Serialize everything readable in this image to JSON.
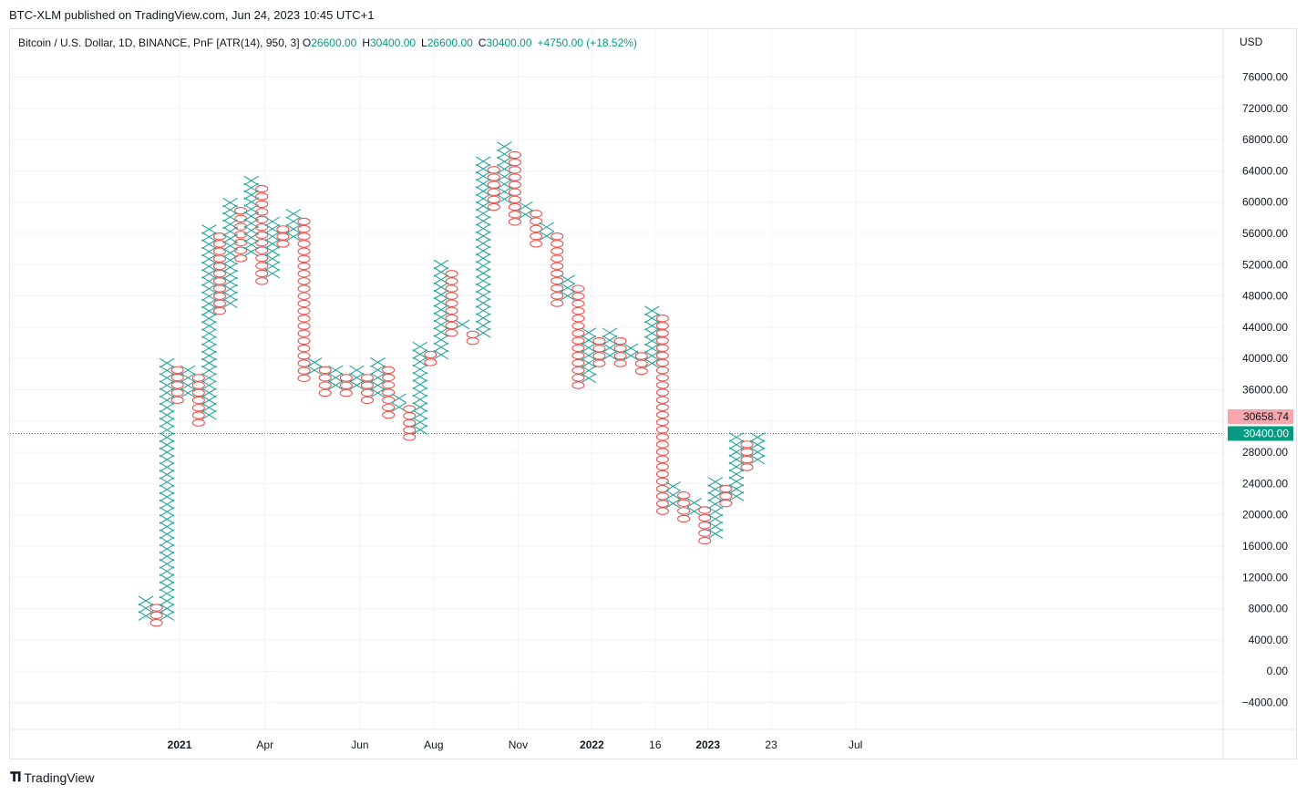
{
  "header": {
    "published": "BTC-XLM published on TradingView.com, Jun 24, 2023 10:45 UTC+1"
  },
  "legend": {
    "symbol": "Bitcoin / U.S. Dollar, 1D, BINANCE, PnF [ATR(14), 950, 3]",
    "o_label": "O",
    "o_value": "26600.00",
    "h_label": "H",
    "h_value": "30400.00",
    "l_label": "L",
    "l_value": "26600.00",
    "c_label": "C",
    "c_value": "30400.00",
    "change": "+4750.00 (+18.52%)"
  },
  "axis": {
    "currency": "USD"
  },
  "price_labels": {
    "close": "30400.00",
    "close_color": "#089981",
    "other": "30658.74",
    "other_color": "#f7a7ab"
  },
  "branding": {
    "name": "TradingView"
  },
  "colors": {
    "x_color": "#26a69a",
    "o_color": "#ef5350",
    "grid": "#f0f3fa"
  },
  "chart_data": {
    "type": "point-and-figure",
    "box_size": 950,
    "reversal": 3,
    "yticks": [
      76000,
      72000,
      68000,
      64000,
      60000,
      56000,
      52000,
      48000,
      44000,
      40000,
      36000,
      32000,
      28000,
      24000,
      20000,
      16000,
      12000,
      8000,
      4000,
      0,
      -4000
    ],
    "ytick_labels": [
      "76000.00",
      "72000.00",
      "68000.00",
      "64000.00",
      "60000.00",
      "56000.00",
      "52000.00",
      "48000.00",
      "44000.00",
      "40000.00",
      "36000.00",
      "",
      "28000.00",
      "24000.00",
      "20000.00",
      "16000.00",
      "12000.00",
      "8000.00",
      "4000.00",
      "0.00",
      "−4000.00"
    ],
    "ylim": [
      -8000,
      80000
    ],
    "xticks": [
      {
        "label": "2021",
        "bold": true,
        "col": 3.2
      },
      {
        "label": "Apr",
        "bold": false,
        "col": 11.3
      },
      {
        "label": "Jun",
        "bold": false,
        "col": 20.3
      },
      {
        "label": "Aug",
        "bold": false,
        "col": 27.3
      },
      {
        "label": "Nov",
        "bold": false,
        "col": 35.3
      },
      {
        "label": "2022",
        "bold": true,
        "col": 42.3
      },
      {
        "label": "16",
        "bold": false,
        "col": 48.3
      },
      {
        "label": "2023",
        "bold": true,
        "col": 53.3
      },
      {
        "label": "23",
        "bold": false,
        "col": 59.3
      },
      {
        "label": "Jul",
        "bold": false,
        "col": 67.3
      }
    ],
    "columns": [
      {
        "type": "X",
        "low": 6600,
        "high": 9500
      },
      {
        "type": "O",
        "low": 5700,
        "high": 8600
      },
      {
        "type": "X",
        "low": 6600,
        "high": 39900
      },
      {
        "type": "O",
        "low": 34200,
        "high": 39000
      },
      {
        "type": "X",
        "low": 35100,
        "high": 39000
      },
      {
        "type": "O",
        "low": 31300,
        "high": 38000
      },
      {
        "type": "X",
        "low": 32300,
        "high": 57000
      },
      {
        "type": "O",
        "low": 45600,
        "high": 56100
      },
      {
        "type": "X",
        "low": 46600,
        "high": 60400
      },
      {
        "type": "O",
        "low": 52300,
        "high": 59400
      },
      {
        "type": "X",
        "low": 53200,
        "high": 63200
      },
      {
        "type": "O",
        "low": 49400,
        "high": 62200
      },
      {
        "type": "X",
        "low": 50400,
        "high": 58000
      },
      {
        "type": "O",
        "low": 54200,
        "high": 57000
      },
      {
        "type": "X",
        "low": 55100,
        "high": 59000
      },
      {
        "type": "O",
        "low": 37000,
        "high": 58000
      },
      {
        "type": "X",
        "low": 38000,
        "high": 40000
      },
      {
        "type": "O",
        "low": 35100,
        "high": 39000
      },
      {
        "type": "X",
        "low": 36100,
        "high": 39000
      },
      {
        "type": "O",
        "low": 35100,
        "high": 38000
      },
      {
        "type": "X",
        "low": 36100,
        "high": 39000
      },
      {
        "type": "O",
        "low": 34200,
        "high": 38000
      },
      {
        "type": "X",
        "low": 35100,
        "high": 40000
      },
      {
        "type": "O",
        "low": 32300,
        "high": 39000
      },
      {
        "type": "X",
        "low": 33200,
        "high": 35500
      },
      {
        "type": "O",
        "low": 29500,
        "high": 34000
      },
      {
        "type": "X",
        "low": 30400,
        "high": 42000
      },
      {
        "type": "O",
        "low": 39000,
        "high": 41000
      },
      {
        "type": "X",
        "low": 40000,
        "high": 52500
      },
      {
        "type": "O",
        "low": 42800,
        "high": 51300
      },
      {
        "type": "X",
        "low": 43700,
        "high": 45000
      },
      {
        "type": "O",
        "low": 41800,
        "high": 43500
      },
      {
        "type": "X",
        "low": 42800,
        "high": 65700
      },
      {
        "type": "O",
        "low": 58900,
        "high": 64600
      },
      {
        "type": "X",
        "low": 59900,
        "high": 67600
      },
      {
        "type": "O",
        "low": 57000,
        "high": 66500
      },
      {
        "type": "X",
        "low": 57900,
        "high": 60000
      },
      {
        "type": "O",
        "low": 54200,
        "high": 59000
      },
      {
        "type": "X",
        "low": 55100,
        "high": 57400
      },
      {
        "type": "O",
        "low": 46600,
        "high": 56100
      },
      {
        "type": "X",
        "low": 47500,
        "high": 50600
      },
      {
        "type": "O",
        "low": 36100,
        "high": 49400
      },
      {
        "type": "X",
        "low": 37000,
        "high": 43800
      },
      {
        "type": "O",
        "low": 38900,
        "high": 42700
      },
      {
        "type": "X",
        "low": 39900,
        "high": 43800
      },
      {
        "type": "O",
        "low": 38900,
        "high": 42700
      },
      {
        "type": "X",
        "low": 39900,
        "high": 41800
      },
      {
        "type": "O",
        "low": 37900,
        "high": 40800
      },
      {
        "type": "X",
        "low": 38900,
        "high": 46600
      },
      {
        "type": "O",
        "low": 20000,
        "high": 45600
      },
      {
        "type": "X",
        "low": 20900,
        "high": 24200
      },
      {
        "type": "O",
        "low": 19000,
        "high": 23000
      },
      {
        "type": "X",
        "low": 19900,
        "high": 22100
      },
      {
        "type": "O",
        "low": 16200,
        "high": 21100
      },
      {
        "type": "X",
        "low": 17100,
        "high": 24700
      },
      {
        "type": "O",
        "low": 21000,
        "high": 23800
      },
      {
        "type": "X",
        "low": 21900,
        "high": 30400
      },
      {
        "type": "O",
        "low": 25600,
        "high": 29500
      },
      {
        "type": "X",
        "low": 26600,
        "high": 30400
      }
    ]
  }
}
